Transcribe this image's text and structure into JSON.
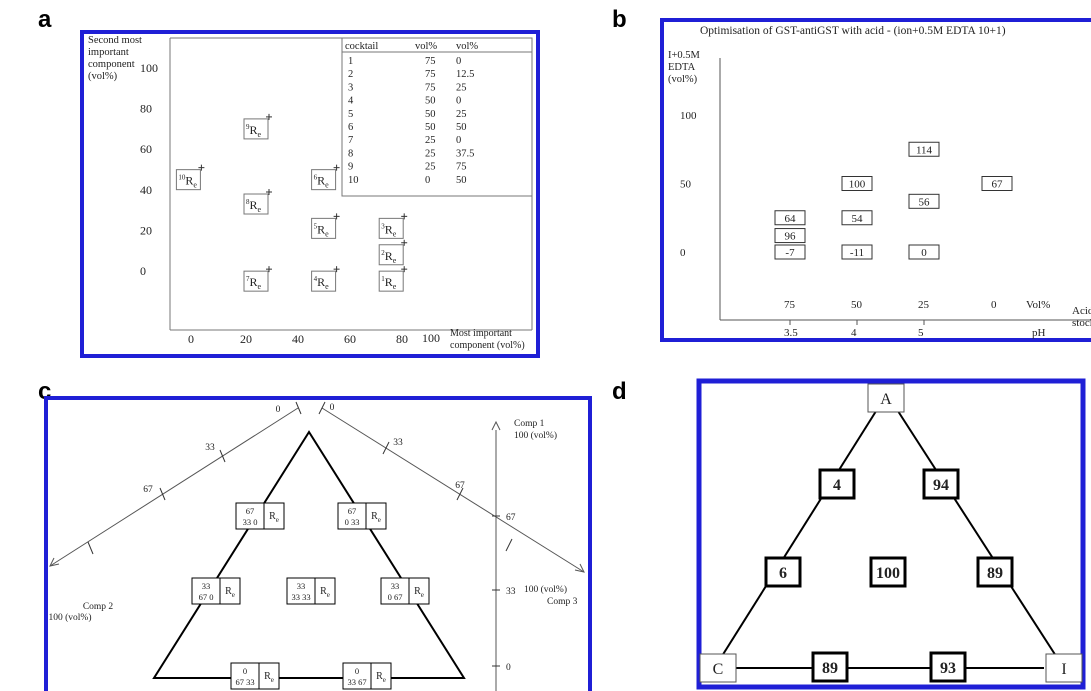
{
  "letters": {
    "a": "a",
    "b": "b",
    "c": "c",
    "d": "d"
  },
  "border_color": "#1f1fd6",
  "panel_a": {
    "ylabel": [
      "Second most",
      "important",
      "component",
      "(vol%)"
    ],
    "xlabel": [
      "Most important",
      "component (vol%)"
    ],
    "xlabel_tick": "100",
    "yticks": [
      "100",
      "80",
      "60",
      "40",
      "20",
      "0"
    ],
    "xticks": [
      "0",
      "20",
      "40",
      "60",
      "80"
    ],
    "re_base": "R",
    "re_sub": "e",
    "points": [
      {
        "n": "1",
        "x": 72,
        "y": -5
      },
      {
        "n": "2",
        "x": 72,
        "y": 8
      },
      {
        "n": "3",
        "x": 72,
        "y": 21
      },
      {
        "n": "4",
        "x": 46,
        "y": -5
      },
      {
        "n": "5",
        "x": 46,
        "y": 21
      },
      {
        "n": "6",
        "x": 46,
        "y": 45
      },
      {
        "n": "7",
        "x": 20,
        "y": -5
      },
      {
        "n": "8",
        "x": 20,
        "y": 33
      },
      {
        "n": "9",
        "x": 20,
        "y": 70
      },
      {
        "n": "10",
        "x": -6,
        "y": 45
      }
    ],
    "table": {
      "headers": [
        "cocktail",
        "vol%",
        "vol%"
      ],
      "rows": [
        [
          "1",
          "75",
          "0"
        ],
        [
          "2",
          "75",
          "12.5"
        ],
        [
          "3",
          "75",
          "25"
        ],
        [
          "4",
          "50",
          "0"
        ],
        [
          "5",
          "50",
          "25"
        ],
        [
          "6",
          "50",
          "50"
        ],
        [
          "7",
          "25",
          "0"
        ],
        [
          "8",
          "25",
          "37.5"
        ],
        [
          "9",
          "25",
          "75"
        ],
        [
          "10",
          "0",
          "50"
        ]
      ]
    }
  },
  "panel_b": {
    "title": "Optimisation of GST-antiGST with acid - (ion+0.5M EDTA 10+1)",
    "ylabel": [
      "I+0.5M",
      "EDTA",
      "(vol%)"
    ],
    "yticks": [
      "100",
      "50",
      "0"
    ],
    "vol_ticks": [
      "75",
      "50",
      "25",
      "0"
    ],
    "vol_label": "Vol%",
    "ph_ticks": [
      "3.5",
      "4",
      "5"
    ],
    "ph_label": "pH",
    "right_label": [
      "Acid",
      "stock"
    ],
    "boxes": [
      {
        "v": "64",
        "col": 0,
        "y": 25
      },
      {
        "v": "96",
        "col": 0,
        "y": 12
      },
      {
        "v": "-7",
        "col": 0,
        "y": 0
      },
      {
        "v": "100",
        "col": 1,
        "y": 50
      },
      {
        "v": "54",
        "col": 1,
        "y": 25
      },
      {
        "v": "-11",
        "col": 1,
        "y": 0
      },
      {
        "v": "114",
        "col": 2,
        "y": 75
      },
      {
        "v": "56",
        "col": 2,
        "y": 37
      },
      {
        "v": "0",
        "col": 2,
        "y": 0
      },
      {
        "v": "67",
        "col": 3,
        "y": 50
      }
    ]
  },
  "panel_c": {
    "comp1": [
      "Comp 1",
      "100 (vol%)"
    ],
    "comp2": [
      "Comp 2",
      "100 (vol%)"
    ],
    "comp3": [
      "100 (vol%)",
      "Comp 3"
    ],
    "left_ticks": [
      "0",
      "33",
      "67"
    ],
    "right_ticks": [
      "0",
      "33",
      "67"
    ],
    "axis_ticks": [
      "67",
      "33",
      "0"
    ],
    "boxes": [
      {
        "top": "67",
        "bottom": "33  0"
      },
      {
        "top": "67",
        "bottom": "0  33"
      },
      {
        "top": "33",
        "bottom": "67  0"
      },
      {
        "top": "33",
        "bottom": "33 33"
      },
      {
        "top": "33",
        "bottom": "0  67"
      },
      {
        "top": "0",
        "bottom": "67 33"
      },
      {
        "top": "0",
        "bottom": "33 67"
      }
    ]
  },
  "panel_d": {
    "vertices": {
      "a": "A",
      "c": "C",
      "i": "I"
    },
    "values": {
      "left_upper": "4",
      "right_upper": "94",
      "left_lower": "6",
      "center": "100",
      "right_lower": "89",
      "bottom_left": "89",
      "bottom_right": "93"
    }
  }
}
